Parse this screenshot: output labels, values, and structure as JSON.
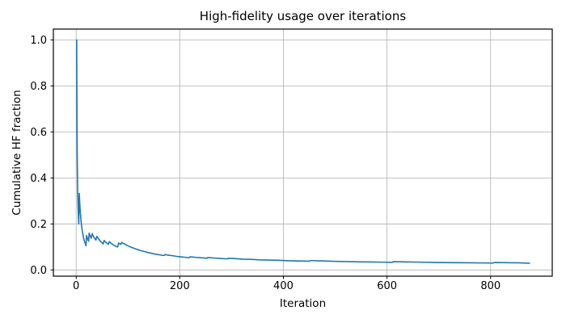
{
  "figure": {
    "title": "High-fidelity usage over iterations",
    "xlabel": "Iteration",
    "ylabel": "Cumulative HF fraction"
  },
  "chart_data": {
    "type": "line",
    "title": "High-fidelity usage over iterations",
    "xlabel": "Iteration",
    "ylabel": "Cumulative HF fraction",
    "xlim": [
      -44,
      919
    ],
    "ylim": [
      -0.027,
      1.047
    ],
    "x_ticks": [
      0,
      200,
      400,
      600,
      800
    ],
    "y_ticks": [
      0.0,
      0.2,
      0.4,
      0.6,
      0.8,
      1.0
    ],
    "grid": true,
    "legend": "none",
    "colors": {
      "line": "#1f77b4",
      "grid": "#b0b0b0",
      "spine": "#000000",
      "background": "#ffffff"
    },
    "series": [
      {
        "name": "Cumulative HF fraction",
        "points": [
          [
            1,
            1.0
          ],
          [
            2,
            0.5
          ],
          [
            3,
            0.333
          ],
          [
            4,
            0.25
          ],
          [
            5,
            0.2
          ],
          [
            6,
            0.333
          ],
          [
            7,
            0.286
          ],
          [
            8,
            0.25
          ],
          [
            10,
            0.2
          ],
          [
            12,
            0.167
          ],
          [
            14,
            0.143
          ],
          [
            16,
            0.125
          ],
          [
            18,
            0.111
          ],
          [
            19,
            0.105
          ],
          [
            20,
            0.15
          ],
          [
            21,
            0.143
          ],
          [
            23,
            0.13
          ],
          [
            24,
            0.125
          ],
          [
            25,
            0.16
          ],
          [
            26,
            0.154
          ],
          [
            28,
            0.143
          ],
          [
            29,
            0.138
          ],
          [
            31,
            0.158
          ],
          [
            32,
            0.152
          ],
          [
            34,
            0.143
          ],
          [
            36,
            0.136
          ],
          [
            38,
            0.13
          ],
          [
            40,
            0.146
          ],
          [
            42,
            0.139
          ],
          [
            44,
            0.133
          ],
          [
            46,
            0.127
          ],
          [
            48,
            0.122
          ],
          [
            50,
            0.118
          ],
          [
            52,
            0.113
          ],
          [
            54,
            0.128
          ],
          [
            56,
            0.123
          ],
          [
            58,
            0.119
          ],
          [
            60,
            0.115
          ],
          [
            62,
            0.111
          ],
          [
            64,
            0.123
          ],
          [
            66,
            0.119
          ],
          [
            68,
            0.115
          ],
          [
            71,
            0.11
          ],
          [
            74,
            0.106
          ],
          [
            77,
            0.102
          ],
          [
            80,
            0.1
          ],
          [
            82,
            0.117
          ],
          [
            84,
            0.114
          ],
          [
            86,
            0.111
          ],
          [
            88,
            0.12
          ],
          [
            91,
            0.115
          ],
          [
            94,
            0.112
          ],
          [
            97,
            0.108
          ],
          [
            101,
            0.104
          ],
          [
            106,
            0.099
          ],
          [
            112,
            0.094
          ],
          [
            118,
            0.089
          ],
          [
            125,
            0.084
          ],
          [
            132,
            0.08
          ],
          [
            140,
            0.075
          ],
          [
            148,
            0.071
          ],
          [
            157,
            0.067
          ],
          [
            166,
            0.064
          ],
          [
            170,
            0.063
          ],
          [
            172,
            0.067
          ],
          [
            178,
            0.064
          ],
          [
            186,
            0.062
          ],
          [
            194,
            0.059
          ],
          [
            202,
            0.057
          ],
          [
            210,
            0.055
          ],
          [
            218,
            0.053
          ],
          [
            220,
            0.057
          ],
          [
            230,
            0.055
          ],
          [
            240,
            0.053
          ],
          [
            252,
            0.051
          ],
          [
            254,
            0.054
          ],
          [
            266,
            0.052
          ],
          [
            278,
            0.05
          ],
          [
            292,
            0.048
          ],
          [
            294,
            0.051
          ],
          [
            308,
            0.049
          ],
          [
            322,
            0.047
          ],
          [
            338,
            0.046
          ],
          [
            354,
            0.044
          ],
          [
            372,
            0.043
          ],
          [
            390,
            0.042
          ],
          [
            410,
            0.04
          ],
          [
            428,
            0.039
          ],
          [
            450,
            0.038
          ],
          [
            452,
            0.041
          ],
          [
            470,
            0.0395
          ],
          [
            490,
            0.038
          ],
          [
            510,
            0.037
          ],
          [
            530,
            0.036
          ],
          [
            550,
            0.035
          ],
          [
            570,
            0.0345
          ],
          [
            590,
            0.034
          ],
          [
            610,
            0.033
          ],
          [
            612,
            0.036
          ],
          [
            635,
            0.035
          ],
          [
            660,
            0.034
          ],
          [
            685,
            0.033
          ],
          [
            710,
            0.032
          ],
          [
            735,
            0.0315
          ],
          [
            760,
            0.031
          ],
          [
            785,
            0.0305
          ],
          [
            805,
            0.03
          ],
          [
            807,
            0.0325
          ],
          [
            830,
            0.0315
          ],
          [
            852,
            0.031
          ],
          [
            875,
            0.0295
          ]
        ]
      }
    ]
  }
}
